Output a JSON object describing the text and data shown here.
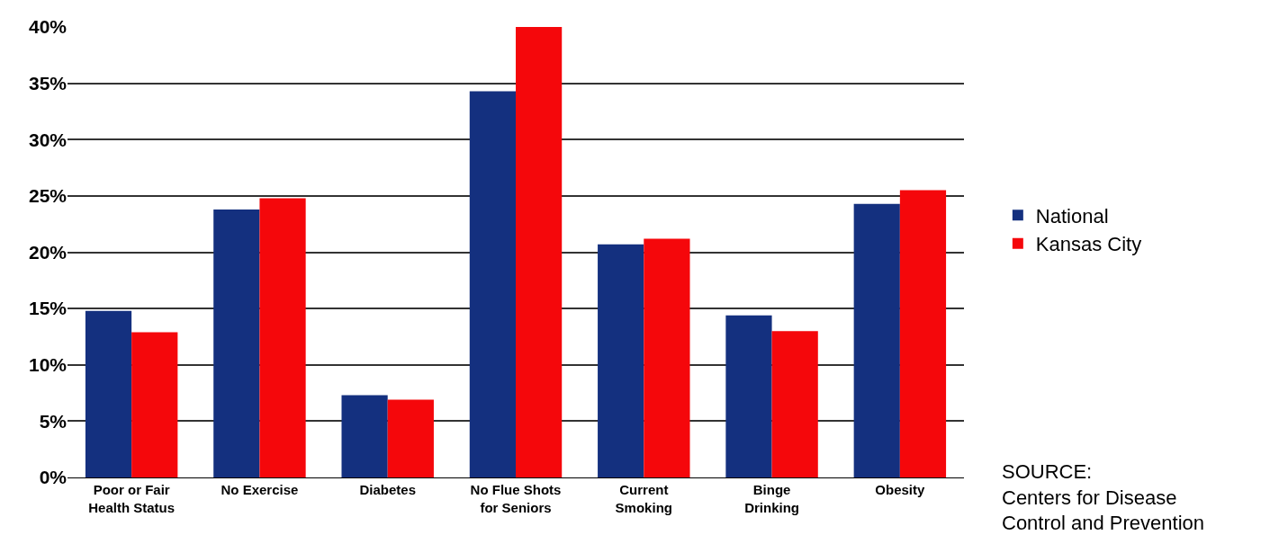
{
  "chart_data": {
    "type": "bar",
    "categories": [
      "Poor or Fair\nHealth Status",
      "No Exercise",
      "Diabetes",
      "No Flue Shots\nfor Seniors",
      "Current\nSmoking",
      "Binge\nDrinking",
      "Obesity"
    ],
    "series": [
      {
        "name": "National",
        "color": "#14307f",
        "values": [
          14.8,
          23.8,
          7.3,
          34.3,
          20.7,
          14.4,
          24.3
        ]
      },
      {
        "name": "Kansas City",
        "color": "#f5070b",
        "values": [
          12.9,
          24.8,
          6.9,
          40,
          21.2,
          13.0,
          25.5
        ]
      }
    ],
    "ylim": [
      0,
      40
    ],
    "yticks": [
      {
        "value": 0,
        "label": "0%"
      },
      {
        "value": 5,
        "label": "5%"
      },
      {
        "value": 10,
        "label": "10%"
      },
      {
        "value": 15,
        "label": "15%"
      },
      {
        "value": 20,
        "label": "20%"
      },
      {
        "value": 25,
        "label": "25%"
      },
      {
        "value": 30,
        "label": "30%"
      },
      {
        "value": 35,
        "label": "35%"
      },
      {
        "value": 40,
        "label": "40%"
      }
    ],
    "grid": "y",
    "legend": "right",
    "annotations": [
      "SOURCE:\nCenters for Disease\nControl and Prevention"
    ]
  }
}
